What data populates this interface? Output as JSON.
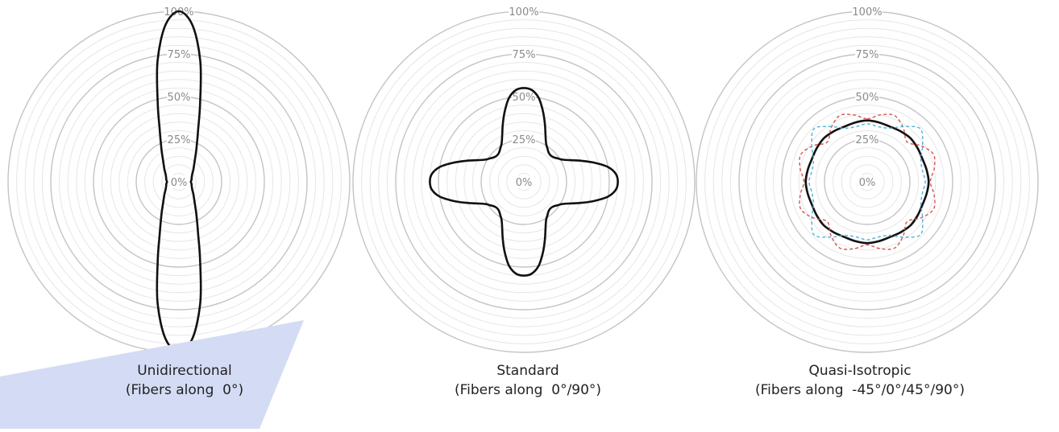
{
  "chart_data": [
    {
      "type": "polar-line",
      "subtitle": "Unidirectional",
      "caption_line2": "(Fibers along  0°)",
      "radial_ticks": [
        "0%",
        "25%",
        "50%",
        "75%",
        "100%"
      ],
      "radial_range": [
        0,
        100
      ],
      "minor_rings": 20,
      "grid": true,
      "curves": [
        {
          "color": "#111111",
          "style": "solid",
          "points": [
            {
              "theta_deg": 0,
              "r": 100
            },
            {
              "theta_deg": 5,
              "r": 92
            },
            {
              "theta_deg": 10,
              "r": 72
            },
            {
              "theta_deg": 15,
              "r": 48
            },
            {
              "theta_deg": 20,
              "r": 33
            },
            {
              "theta_deg": 25,
              "r": 25
            },
            {
              "theta_deg": 30,
              "r": 20
            },
            {
              "theta_deg": 40,
              "r": 14
            },
            {
              "theta_deg": 50,
              "r": 11
            },
            {
              "theta_deg": 60,
              "r": 9
            },
            {
              "theta_deg": 70,
              "r": 8
            },
            {
              "theta_deg": 80,
              "r": 7.5
            },
            {
              "theta_deg": 90,
              "r": 7
            }
          ]
        }
      ]
    },
    {
      "type": "polar-line",
      "subtitle": "Standard",
      "caption_line2": "(Fibers along  0°/90°)",
      "radial_ticks": [
        "0%",
        "25%",
        "50%",
        "75%",
        "100%"
      ],
      "radial_range": [
        0,
        100
      ],
      "minor_rings": 20,
      "grid": true,
      "curves": [
        {
          "color": "#111111",
          "style": "solid",
          "points": [
            {
              "theta_deg": 0,
              "r": 55
            },
            {
              "theta_deg": 5,
              "r": 54
            },
            {
              "theta_deg": 10,
              "r": 50
            },
            {
              "theta_deg": 15,
              "r": 43
            },
            {
              "theta_deg": 20,
              "r": 36
            },
            {
              "theta_deg": 25,
              "r": 30
            },
            {
              "theta_deg": 30,
              "r": 26
            },
            {
              "theta_deg": 35,
              "r": 24
            },
            {
              "theta_deg": 40,
              "r": 22.5
            },
            {
              "theta_deg": 45,
              "r": 22
            }
          ]
        }
      ]
    },
    {
      "type": "polar-line",
      "subtitle": "Quasi-Isotropic",
      "caption_line2": "(Fibers along  -45°/0°/45°/90°)",
      "radial_ticks": [
        "0%",
        "25%",
        "50%",
        "75%",
        "100%"
      ],
      "radial_range": [
        0,
        100
      ],
      "minor_rings": 20,
      "grid": true,
      "curves": [
        {
          "color": "#111111",
          "style": "solid",
          "points": [
            {
              "theta_deg": 0,
              "r": 36
            },
            {
              "theta_deg": 11.25,
              "r": 35.5
            },
            {
              "theta_deg": 22.5,
              "r": 35
            },
            {
              "theta_deg": 33.75,
              "r": 35.5
            },
            {
              "theta_deg": 45,
              "r": 36
            }
          ]
        },
        {
          "color": "#d9534f",
          "style": "dashed",
          "points": [
            {
              "theta_deg": 0,
              "r": 37
            },
            {
              "theta_deg": 11.25,
              "r": 40
            },
            {
              "theta_deg": 22.5,
              "r": 42
            },
            {
              "theta_deg": 33.75,
              "r": 38
            },
            {
              "theta_deg": 45,
              "r": 33
            }
          ]
        },
        {
          "color": "#4fb3d9",
          "style": "dashed",
          "points": [
            {
              "theta_deg": 0,
              "r": 34
            },
            {
              "theta_deg": 11.25,
              "r": 33
            },
            {
              "theta_deg": 22.5,
              "r": 34
            },
            {
              "theta_deg": 33.75,
              "r": 39
            },
            {
              "theta_deg": 45,
              "r": 44
            }
          ]
        }
      ]
    }
  ],
  "colors": {
    "ring_minor": "#e6e6e6",
    "ring_major": "#c4c4c4",
    "tick_label": "#8a8a8a",
    "watermark": "#d3dcf4"
  }
}
